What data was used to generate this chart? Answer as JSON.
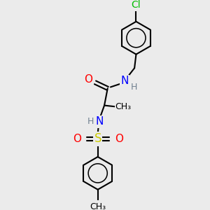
{
  "bg_color": "#ebebeb",
  "atom_colors": {
    "C": "#000000",
    "H": "#708090",
    "N": "#0000ff",
    "O": "#ff0000",
    "S": "#cccc00",
    "Cl": "#00bb00"
  },
  "bond_color": "#000000",
  "bond_width": 1.5,
  "ring_r": 0.5,
  "font_size_atom": 11,
  "font_size_h": 9,
  "font_size_ch3": 9
}
